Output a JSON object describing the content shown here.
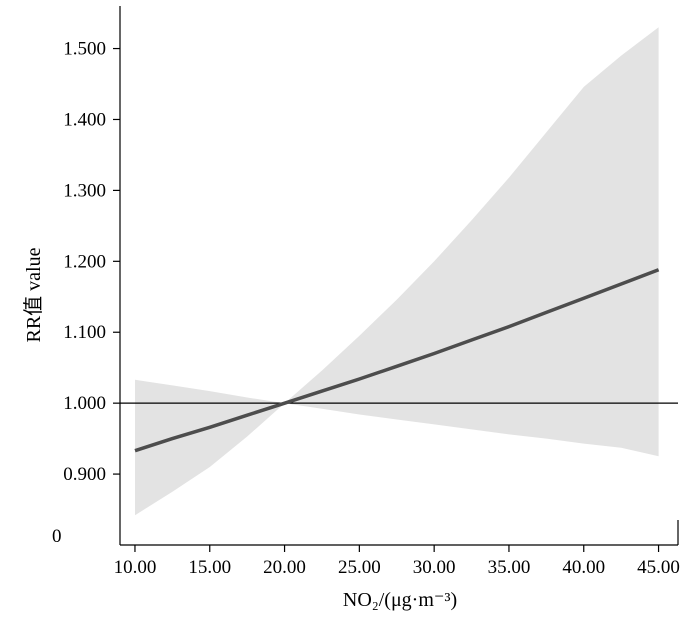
{
  "chart_data": {
    "type": "line",
    "title": "",
    "xlabel": "NO₂/(μg·m⁻³)",
    "ylabel": "RR值 value",
    "xlim": [
      9,
      46.3
    ],
    "ylim": [
      0.8,
      1.56
    ],
    "x_ticks": [
      10,
      15,
      20,
      25,
      30,
      35,
      40,
      45
    ],
    "x_tick_labels": [
      "10.00",
      "15.00",
      "20.00",
      "25.00",
      "30.00",
      "35.00",
      "40.00",
      "45.00"
    ],
    "y_ticks": [
      0.9,
      1.0,
      1.1,
      1.2,
      1.3,
      1.4,
      1.5
    ],
    "y_tick_labels": [
      "0.900",
      "1.000",
      "1.100",
      "1.200",
      "1.300",
      "1.400",
      "1.500"
    ],
    "y_origin_label": "0",
    "reference_line": 1.0,
    "series": [
      {
        "x": [
          10,
          12.5,
          15,
          17.5,
          20,
          22.5,
          25,
          27.5,
          30,
          32.5,
          35,
          37.5,
          40,
          42.5,
          45
        ],
        "y": [
          0.933,
          0.95,
          0.966,
          0.983,
          1.0,
          1.017,
          1.034,
          1.052,
          1.07,
          1.089,
          1.108,
          1.128,
          1.148,
          1.168,
          1.188
        ],
        "lower": [
          0.842,
          0.875,
          0.91,
          0.953,
          1.0,
          0.992,
          0.984,
          0.977,
          0.97,
          0.963,
          0.956,
          0.95,
          0.943,
          0.937,
          0.925
        ],
        "upper": [
          1.033,
          1.025,
          1.017,
          1.008,
          1.0,
          1.046,
          1.095,
          1.146,
          1.2,
          1.258,
          1.318,
          1.382,
          1.446,
          1.49,
          1.53
        ]
      }
    ],
    "colors": {
      "line": "#4d4d4d",
      "band": "#e3e3e3",
      "axis": "#000000"
    },
    "grid": false
  }
}
